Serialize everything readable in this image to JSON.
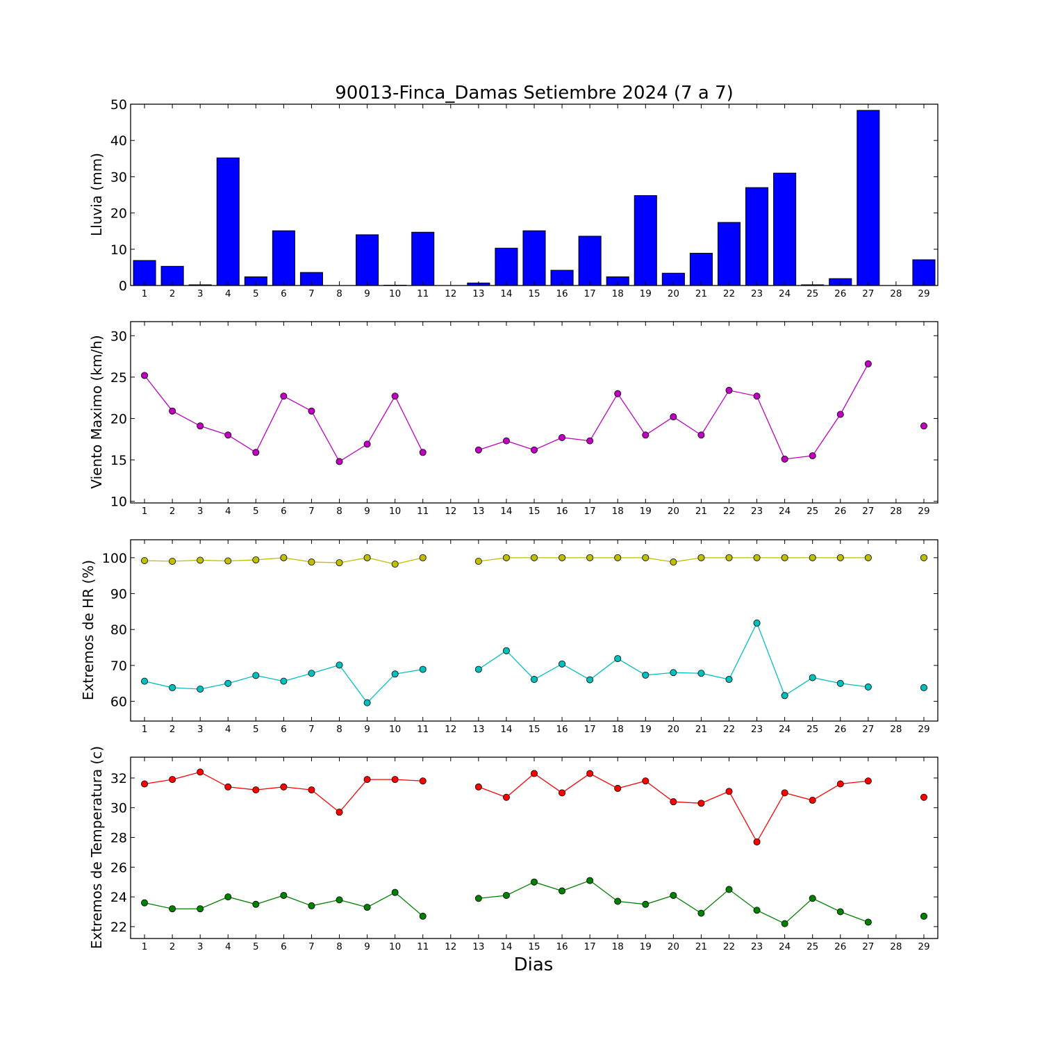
{
  "chart_data": [
    {
      "type": "bar",
      "title": "90013-Finca_Damas Setiembre 2024  (7 a 7)",
      "xlabel": "",
      "ylabel": "Lluvia (mm)",
      "ylim": [
        0,
        50
      ],
      "yticks": [
        0,
        10,
        20,
        30,
        40,
        50
      ],
      "x": [
        1,
        2,
        3,
        4,
        5,
        6,
        7,
        8,
        9,
        10,
        11,
        12,
        13,
        14,
        15,
        16,
        17,
        18,
        19,
        20,
        21,
        22,
        23,
        24,
        25,
        26,
        27,
        28,
        29
      ],
      "series": [
        {
          "color": "#0000ff",
          "values": [
            6.9,
            5.3,
            0.2,
            35.2,
            2.4,
            15.1,
            3.6,
            0,
            14.0,
            0.1,
            14.7,
            0,
            0.7,
            10.3,
            15.1,
            4.2,
            13.6,
            2.4,
            24.8,
            3.4,
            8.9,
            17.4,
            27.0,
            31.0,
            0.2,
            1.9,
            48.3,
            0,
            7.1
          ]
        }
      ],
      "grid": false
    },
    {
      "type": "line",
      "xlabel": "",
      "ylabel": "Viento Maximo (km/h)",
      "ylim": [
        9.8,
        31.7
      ],
      "yticks": [
        10,
        15,
        20,
        25,
        30
      ],
      "x": [
        1,
        2,
        3,
        4,
        5,
        6,
        7,
        8,
        9,
        10,
        11,
        12,
        13,
        14,
        15,
        16,
        17,
        18,
        19,
        20,
        21,
        22,
        23,
        24,
        25,
        26,
        27,
        28,
        29
      ],
      "series": [
        {
          "color": "#bf00bf",
          "values": [
            25.2,
            20.9,
            19.1,
            18.0,
            15.9,
            22.7,
            20.9,
            14.8,
            16.9,
            22.7,
            15.9,
            null,
            16.2,
            17.3,
            16.2,
            17.7,
            17.3,
            23.0,
            18.0,
            20.2,
            18.0,
            23.4,
            22.7,
            15.1,
            15.5,
            20.5,
            26.6,
            null,
            19.1
          ]
        }
      ],
      "grid": false
    },
    {
      "type": "line",
      "xlabel": "",
      "ylabel": "Extremos de HR (%)",
      "ylim": [
        54.5,
        105
      ],
      "yticks": [
        60,
        70,
        80,
        90,
        100
      ],
      "x": [
        1,
        2,
        3,
        4,
        5,
        6,
        7,
        8,
        9,
        10,
        11,
        12,
        13,
        14,
        15,
        16,
        17,
        18,
        19,
        20,
        21,
        22,
        23,
        24,
        25,
        26,
        27,
        28,
        29
      ],
      "series": [
        {
          "color": "#bfbf00",
          "values": [
            99.2,
            99.0,
            99.3,
            99.1,
            99.4,
            100,
            98.8,
            98.6,
            100,
            98.2,
            100,
            null,
            99.0,
            100,
            100,
            100,
            100,
            100,
            100,
            98.8,
            100,
            100,
            100,
            100,
            100,
            100,
            100,
            null,
            100
          ]
        },
        {
          "color": "#00bfbf",
          "values": [
            65.6,
            63.8,
            63.4,
            65.0,
            67.2,
            65.6,
            67.8,
            70.1,
            59.6,
            67.6,
            68.9,
            null,
            68.9,
            74.1,
            66.1,
            70.4,
            66.0,
            71.9,
            67.3,
            68.0,
            67.8,
            66.1,
            81.8,
            61.6,
            66.6,
            65.0,
            64.0,
            null,
            63.8
          ]
        }
      ],
      "grid": false
    },
    {
      "type": "line",
      "xlabel": "Dias",
      "ylabel": "Extremos de Temperatura (c)",
      "ylim": [
        21.2,
        33.4
      ],
      "yticks": [
        22,
        24,
        26,
        28,
        30,
        32
      ],
      "x": [
        1,
        2,
        3,
        4,
        5,
        6,
        7,
        8,
        9,
        10,
        11,
        12,
        13,
        14,
        15,
        16,
        17,
        18,
        19,
        20,
        21,
        22,
        23,
        24,
        25,
        26,
        27,
        28,
        29
      ],
      "series": [
        {
          "color": "#ff0000",
          "values": [
            31.6,
            31.9,
            32.4,
            31.4,
            31.2,
            31.4,
            31.2,
            29.7,
            31.9,
            31.9,
            31.8,
            null,
            31.4,
            30.7,
            32.3,
            31.0,
            32.3,
            31.3,
            31.8,
            30.4,
            30.3,
            31.1,
            27.7,
            31.0,
            30.5,
            31.6,
            31.8,
            null,
            30.7
          ]
        },
        {
          "color": "#008000",
          "values": [
            23.6,
            23.2,
            23.2,
            24.0,
            23.5,
            24.1,
            23.4,
            23.8,
            23.3,
            24.3,
            22.7,
            null,
            23.9,
            24.1,
            25.0,
            24.4,
            25.1,
            23.7,
            23.5,
            24.1,
            22.9,
            24.5,
            23.1,
            22.2,
            23.9,
            23.0,
            22.3,
            null,
            22.7
          ]
        }
      ],
      "grid": false
    }
  ]
}
